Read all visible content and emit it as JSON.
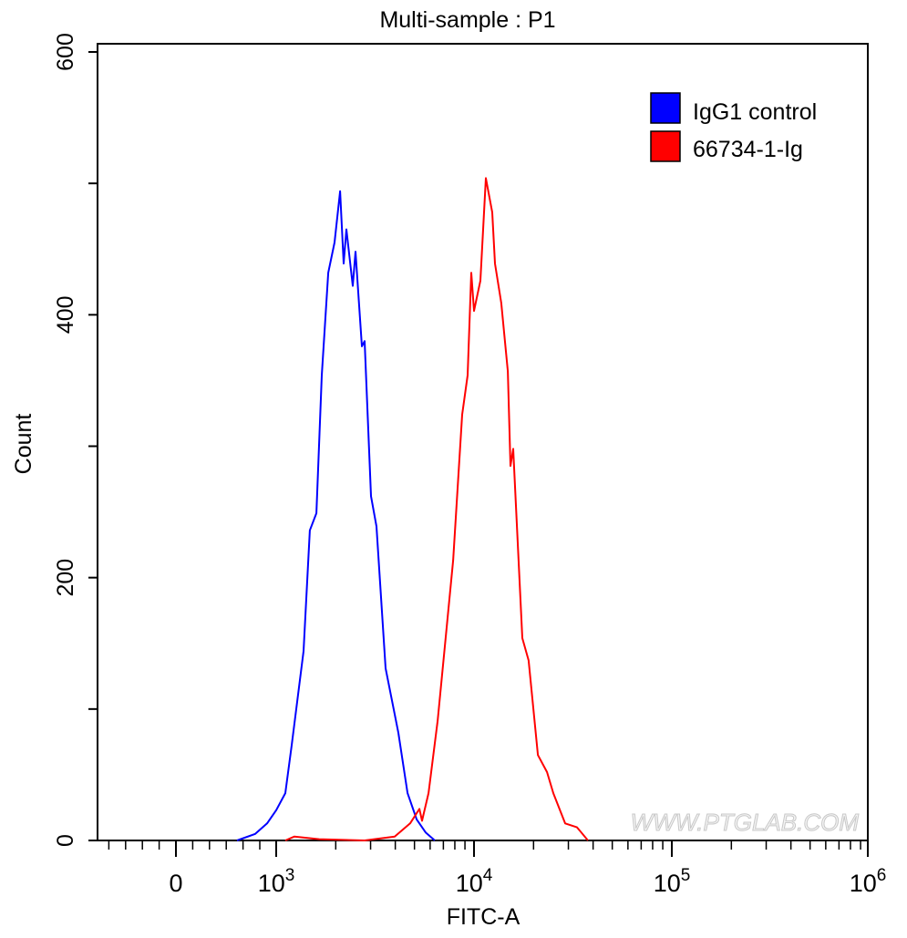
{
  "chart_data": {
    "type": "line",
    "title": "Multi-sample : P1",
    "xlabel": "FITC-A",
    "ylabel": "Count",
    "x_scale": "biexponential",
    "x_ticks": [
      {
        "value": 0,
        "base": "0",
        "exp": ""
      },
      {
        "value": 1000,
        "base": "10",
        "exp": "3"
      },
      {
        "value": 10000,
        "base": "10",
        "exp": "4"
      },
      {
        "value": 100000,
        "base": "10",
        "exp": "5"
      },
      {
        "value": 1000000,
        "base": "10",
        "exp": "6"
      }
    ],
    "y_ticks": [
      "0",
      "200",
      "400",
      "600"
    ],
    "ylim": [
      0,
      600
    ],
    "grid": false,
    "legend_position": "top-right",
    "watermark": "WWW.PTGLAB.COM",
    "series": [
      {
        "name": "IgG1 control",
        "color": "#0000ff",
        "x": [
          609,
          791,
          909,
          1000,
          1112,
          1197,
          1375,
          1480,
          1596,
          1700,
          1832,
          1973,
          2104,
          2193,
          2265,
          2439,
          2518,
          2711,
          2799,
          3015,
          3212,
          3572,
          4146,
          4613,
          5129,
          5703,
          6339
        ],
        "y": [
          0,
          5,
          13,
          23,
          36,
          72,
          144,
          236,
          249,
          354,
          432,
          455,
          494,
          439,
          465,
          422,
          448,
          376,
          380,
          262,
          239,
          131,
          82,
          36,
          16,
          6,
          0
        ]
      },
      {
        "name": "66734-1-Ig",
        "color": "#ff0000",
        "x": [
          1112,
          1236,
          1648,
          2799,
          3972,
          4753,
          5297,
          5460,
          5891,
          6549,
          7839,
          8716,
          9289,
          9687,
          10000,
          10767,
          11482,
          12359,
          12764,
          13740,
          14820,
          15290,
          15780,
          17540,
          18890,
          21030,
          23390,
          25180,
          28890,
          33170,
          37670
        ],
        "y": [
          0,
          3,
          1,
          0,
          3,
          13,
          24,
          15,
          36,
          91,
          213,
          324,
          354,
          432,
          403,
          426,
          504,
          478,
          439,
          409,
          357,
          285,
          298,
          154,
          137,
          65,
          52,
          36,
          13,
          10,
          0
        ]
      }
    ]
  }
}
